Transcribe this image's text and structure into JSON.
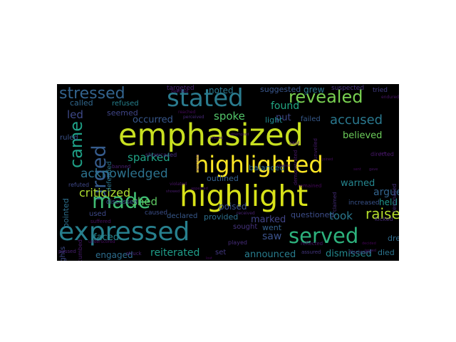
{
  "words": [
    {
      "text": "emphasized",
      "color": "#c8e020"
    },
    {
      "text": "highlighted",
      "color": "#fde725"
    },
    {
      "text": "highlight",
      "color": "#d8e219"
    },
    {
      "text": "expressed",
      "color": "#27808e"
    },
    {
      "text": "stated",
      "color": "#2a7b8e"
    },
    {
      "text": "revealed",
      "color": "#79d151"
    },
    {
      "text": "stressed",
      "color": "#33638d"
    },
    {
      "text": "served",
      "color": "#2db27d"
    },
    {
      "text": "came",
      "color": "#1fa187"
    },
    {
      "text": "urged",
      "color": "#365c8d"
    },
    {
      "text": "made",
      "color": "#3fbc73"
    },
    {
      "text": "accused",
      "color": "#2a788e"
    },
    {
      "text": "acknowledged",
      "color": "#2c728e"
    },
    {
      "text": "criticized",
      "color": "#addc30"
    },
    {
      "text": "raised",
      "color": "#b5de2b"
    },
    {
      "text": "occurred",
      "color": "#38588c"
    },
    {
      "text": "believed",
      "color": "#6ccd5a"
    },
    {
      "text": "spoke",
      "color": "#52c569"
    },
    {
      "text": "led",
      "color": "#3e4989"
    },
    {
      "text": "sparked",
      "color": "#20a386"
    },
    {
      "text": "shed",
      "color": "#5ec962"
    },
    {
      "text": "argued",
      "color": "#33638d"
    },
    {
      "text": "warned",
      "color": "#25858e"
    },
    {
      "text": "took",
      "color": "#2a788e"
    },
    {
      "text": "held",
      "color": "#1f968b"
    },
    {
      "text": "marked",
      "color": "#414487"
    },
    {
      "text": "saw",
      "color": "#3b528b"
    },
    {
      "text": "faced",
      "color": "#25858e"
    },
    {
      "text": "reiterated",
      "color": "#1f9e89"
    },
    {
      "text": "engaged",
      "color": "#2e6e8e"
    },
    {
      "text": "announced",
      "color": "#287d8e"
    },
    {
      "text": "dismissed",
      "color": "#23898e"
    },
    {
      "text": "put",
      "color": "#3f4788"
    },
    {
      "text": "found",
      "color": "#22a884"
    },
    {
      "text": "grew",
      "color": "#2c728e"
    },
    {
      "text": "noted",
      "color": "#2a768e"
    },
    {
      "text": "suggested",
      "color": "#39568c"
    },
    {
      "text": "seemed",
      "color": "#404688"
    },
    {
      "text": "called",
      "color": "#31688e"
    },
    {
      "text": "refused",
      "color": "#26818e"
    },
    {
      "text": "ruled",
      "color": "#3b528b"
    },
    {
      "text": "pointed",
      "color": "#2d708e"
    },
    {
      "text": "highlights",
      "color": "#3e4a89"
    },
    {
      "text": "refuted",
      "color": "#3f4889"
    },
    {
      "text": "defended",
      "color": "#2b758e"
    },
    {
      "text": "discussed",
      "color": "#3a548c"
    },
    {
      "text": "outlined",
      "color": "#35608d"
    },
    {
      "text": "balanced",
      "color": "#2f6c8e"
    },
    {
      "text": "light",
      "color": "#23898e"
    },
    {
      "text": "failed",
      "color": "#375a8c"
    },
    {
      "text": "poised",
      "color": "#3b528b"
    },
    {
      "text": "declared",
      "color": "#38598c"
    },
    {
      "text": "provided",
      "color": "#2d708e"
    },
    {
      "text": "caused",
      "color": "#3c4f8a"
    },
    {
      "text": "questioned",
      "color": "#3d4e8a"
    },
    {
      "text": "went",
      "color": "#34618d"
    },
    {
      "text": "drew",
      "color": "#2f6c8e"
    },
    {
      "text": "died",
      "color": "#2b748e"
    },
    {
      "text": "used",
      "color": "#3e4989"
    },
    {
      "text": "set",
      "color": "#443983"
    },
    {
      "text": "increased",
      "color": "#3a548c"
    },
    {
      "text": "sought",
      "color": "#46337e"
    },
    {
      "text": "played",
      "color": "#472d7b"
    },
    {
      "text": "targeted",
      "color": "#482576"
    },
    {
      "text": "suspected",
      "color": "#46327e"
    },
    {
      "text": "tried",
      "color": "#433d84"
    },
    {
      "text": "showcased",
      "color": "#46307e"
    },
    {
      "text": "banned",
      "color": "#482173"
    },
    {
      "text": "succumbed",
      "color": "#481a6c"
    },
    {
      "text": "struck",
      "color": "#482475"
    },
    {
      "text": "suffered",
      "color": "#471063"
    },
    {
      "text": "kicked",
      "color": "#472c7a"
    },
    {
      "text": "assured",
      "color": "#453781"
    },
    {
      "text": "disclosed",
      "color": "#453882"
    },
    {
      "text": "maintained",
      "color": "#3f4889"
    },
    {
      "text": "passed",
      "color": "#482071"
    },
    {
      "text": "reflected",
      "color": "#481668"
    },
    {
      "text": "remained",
      "color": "#46085c"
    },
    {
      "text": "claimed",
      "color": "#472e7c"
    },
    {
      "text": "resonated",
      "color": "#462f7e"
    },
    {
      "text": "directed",
      "color": "#48186a"
    },
    {
      "text": "demonstrated",
      "color": "#48186a"
    },
    {
      "text": "said",
      "color": "#481769"
    },
    {
      "text": "unveiled",
      "color": "#481c6e"
    },
    {
      "text": "managed",
      "color": "#482878"
    },
    {
      "text": "endured",
      "color": "#481467"
    },
    {
      "text": "deemed",
      "color": "#471365"
    },
    {
      "text": "reached",
      "color": "#46085c"
    },
    {
      "text": "perceived",
      "color": "#482979"
    },
    {
      "text": "received",
      "color": "#482173"
    },
    {
      "text": "violated",
      "color": "#481467"
    },
    {
      "text": "underscored",
      "color": "#470e61"
    },
    {
      "text": "lost",
      "color": "#46075a"
    },
    {
      "text": "decided",
      "color": "#450457"
    },
    {
      "text": "issued",
      "color": "#481a6c"
    },
    {
      "text": "attempted",
      "color": "#48186a"
    },
    {
      "text": "alleged",
      "color": "#471063"
    },
    {
      "text": "described",
      "color": "#481f70"
    },
    {
      "text": "showed",
      "color": "#481b6d"
    },
    {
      "text": "appeared",
      "color": "#471365"
    },
    {
      "text": "joined",
      "color": "#470d60"
    },
    {
      "text": "sent",
      "color": "#46085c"
    },
    {
      "text": "gave",
      "color": "#481567"
    },
    {
      "text": "left",
      "color": "#48186a"
    },
    {
      "text": "opened",
      "color": "#470e61"
    }
  ]
}
